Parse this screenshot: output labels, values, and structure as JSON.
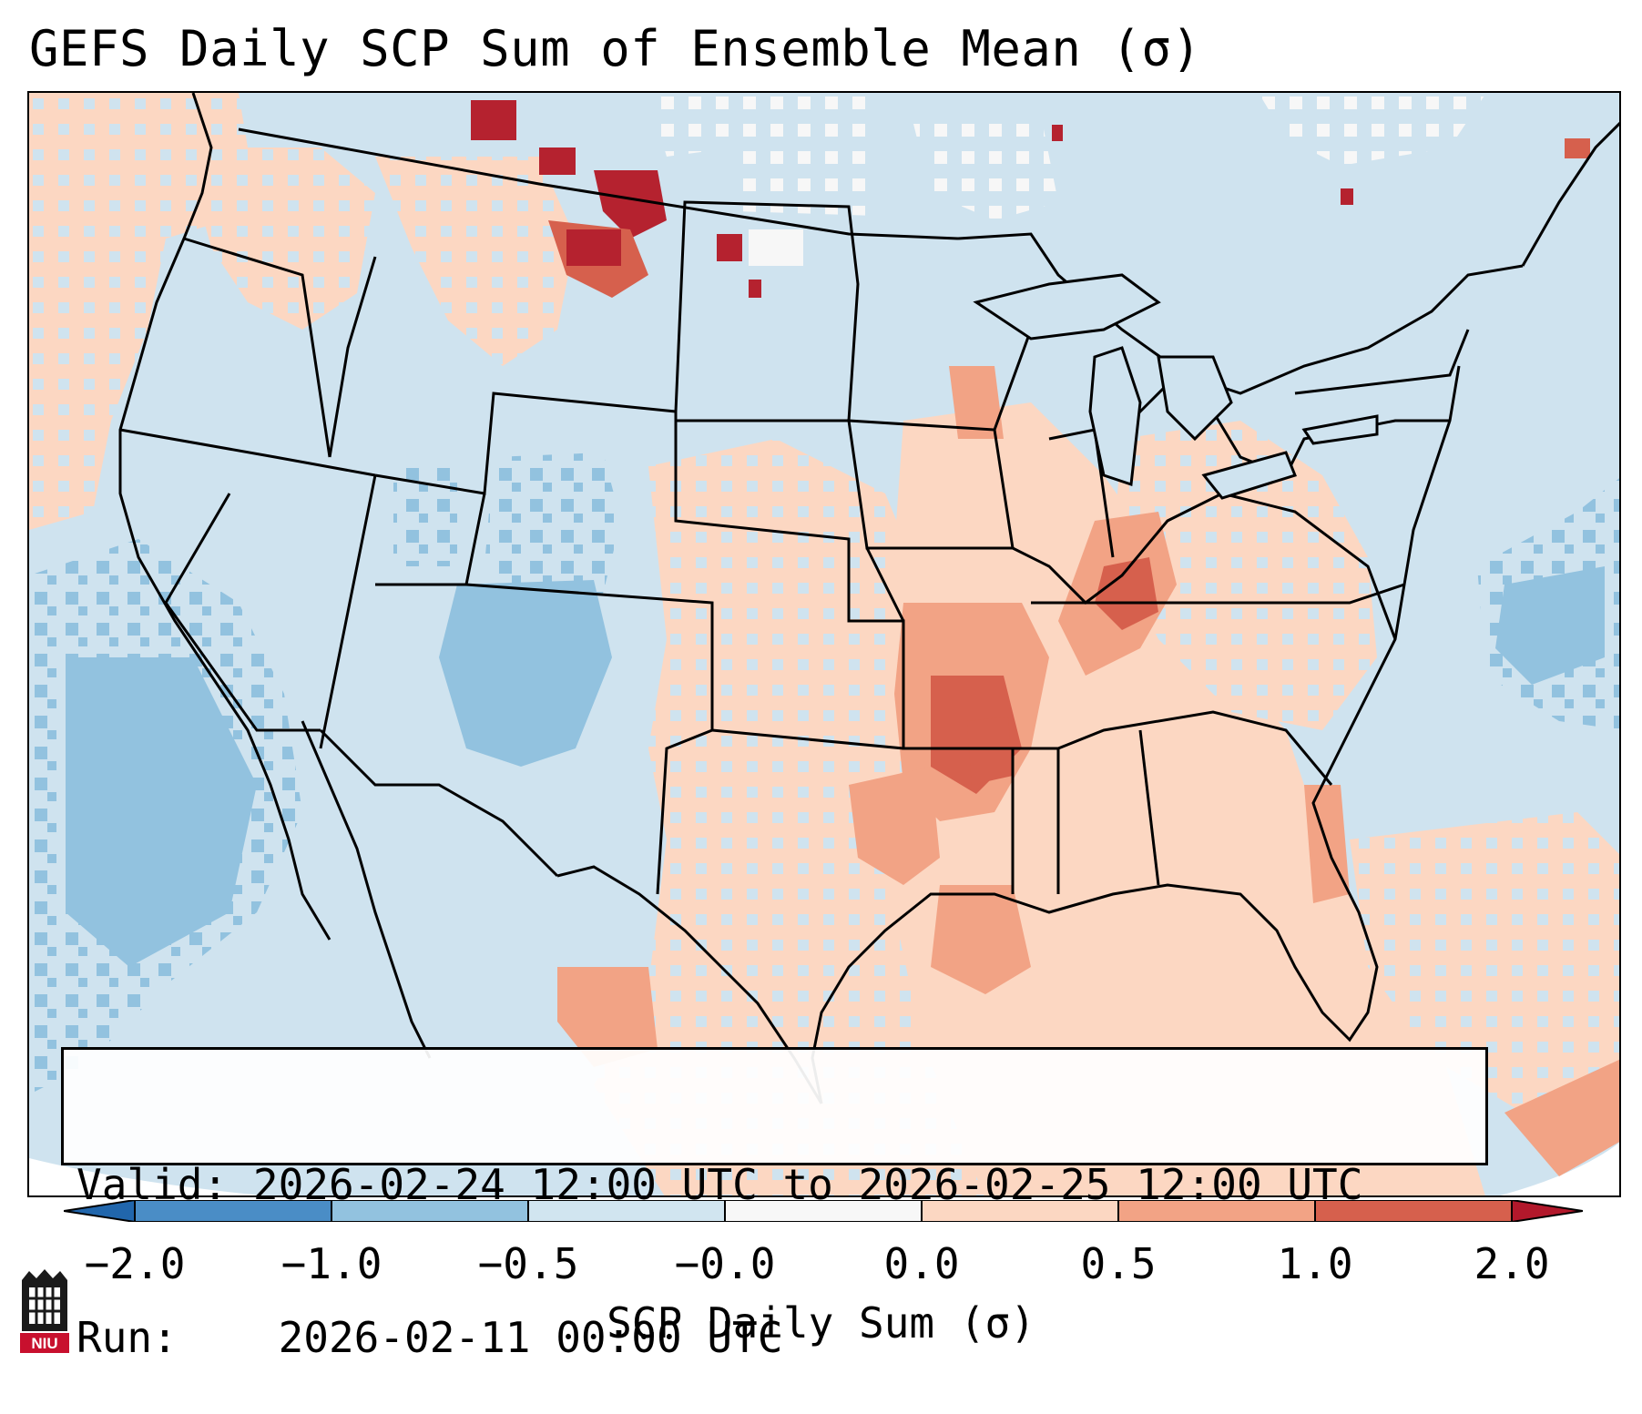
{
  "title": "GEFS Daily SCP Sum of Ensemble Mean (σ)",
  "info": {
    "valid_label": "Valid:",
    "valid_value": "2026-02-24 12:00 UTC to 2026-02-25 12:00 UTC",
    "run_label": "Run:",
    "run_value": "2026-02-11 00:00 UTC"
  },
  "colorbar": {
    "label": "SCP Daily Sum (σ)",
    "ticks": [
      "−2.0",
      "−1.0",
      "−0.5",
      "−0.0",
      "0.0",
      "0.5",
      "1.0",
      "2.0"
    ],
    "colors": [
      "#4a8dc6",
      "#92c2df",
      "#d1e5f0",
      "#f7f7f7",
      "#fcd7c2",
      "#f2a385",
      "#d6604d",
      "#b5222f"
    ],
    "extend_low_color": "#2166ac",
    "extend_high_color": "#b2182b"
  },
  "map": {
    "ocean_color": "#cfe3ef",
    "region": "Continental United States",
    "anomaly_areas": [
      {
        "name": "lower-mississippi-valley",
        "level": "1.0"
      },
      {
        "name": "ohio-valley",
        "level": "0.5"
      },
      {
        "name": "gulf-of-mexico",
        "level": "0.5"
      },
      {
        "name": "southern-plains",
        "level": "0.0"
      },
      {
        "name": "pacific-northwest",
        "level": "0.0"
      },
      {
        "name": "northern-rockies-canada",
        "level": "2.0"
      },
      {
        "name": "four-corners",
        "level": "−1.0"
      },
      {
        "name": "eastern-pacific",
        "level": "−1.0"
      },
      {
        "name": "western-atlantic",
        "level": "−1.0"
      },
      {
        "name": "north-dakota-canada",
        "level": "−0.0"
      }
    ]
  },
  "logo": {
    "text": "NIU"
  }
}
